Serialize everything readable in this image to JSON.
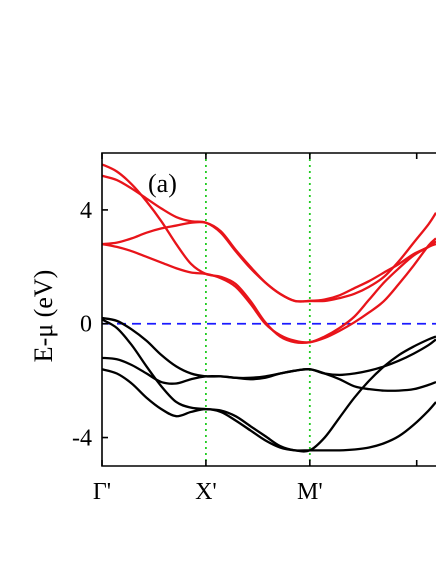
{
  "chart_data": {
    "type": "line",
    "panel_label": "(a)",
    "ylabel": "E-μ (eV)",
    "xlabel": "",
    "ylim": [
      -5.0,
      6.0
    ],
    "xlim": [
      0,
      2.25
    ],
    "grid": false,
    "legend": "none",
    "yticks": [
      {
        "value": 4,
        "label": "4"
      },
      {
        "value": 0,
        "label": "0"
      },
      {
        "value": -4,
        "label": "-4"
      }
    ],
    "xticks": [
      {
        "value": 0,
        "label": "Γ'"
      },
      {
        "value": 0.7,
        "label": "X'"
      },
      {
        "value": 1.4,
        "label": "M'"
      }
    ],
    "reference_lines": [
      {
        "orientation": "horizontal",
        "value": 0,
        "style": "dashed",
        "color": "#1a1aff"
      },
      {
        "orientation": "vertical",
        "value": 0.7,
        "style": "dotted",
        "color": "#22cc22"
      },
      {
        "orientation": "vertical",
        "value": 1.4,
        "style": "dotted",
        "color": "#22cc22"
      }
    ],
    "colors": {
      "conduction": "#e8141a",
      "valence": "#000000"
    },
    "series": [
      {
        "group": "conduction",
        "points": [
          [
            0,
            5.6
          ],
          [
            0.1,
            5.35
          ],
          [
            0.2,
            4.9
          ],
          [
            0.3,
            4.3
          ],
          [
            0.4,
            3.6
          ],
          [
            0.5,
            2.8
          ],
          [
            0.6,
            2.1
          ],
          [
            0.7,
            1.75
          ],
          [
            0.8,
            1.65
          ],
          [
            0.9,
            1.4
          ],
          [
            1.0,
            0.8
          ],
          [
            1.1,
            0.05
          ],
          [
            1.2,
            -0.45
          ],
          [
            1.3,
            -0.65
          ],
          [
            1.4,
            -0.65
          ],
          [
            1.5,
            -0.5
          ],
          [
            1.6,
            -0.25
          ],
          [
            1.7,
            0.05
          ],
          [
            1.8,
            0.4
          ],
          [
            1.9,
            0.8
          ],
          [
            2.0,
            1.4
          ],
          [
            2.1,
            2.05
          ],
          [
            2.2,
            2.75
          ],
          [
            2.25,
            3.0
          ]
        ]
      },
      {
        "group": "conduction",
        "points": [
          [
            0,
            5.2
          ],
          [
            0.1,
            5.05
          ],
          [
            0.2,
            4.75
          ],
          [
            0.3,
            4.4
          ],
          [
            0.4,
            4.05
          ],
          [
            0.5,
            3.75
          ],
          [
            0.6,
            3.6
          ],
          [
            0.7,
            3.55
          ],
          [
            0.8,
            3.2
          ],
          [
            0.9,
            2.55
          ],
          [
            1.0,
            1.95
          ],
          [
            1.1,
            1.45
          ],
          [
            1.2,
            1.05
          ],
          [
            1.3,
            0.8
          ],
          [
            1.4,
            0.8
          ],
          [
            1.5,
            0.85
          ],
          [
            1.6,
            1.0
          ],
          [
            1.7,
            1.25
          ],
          [
            1.8,
            1.5
          ],
          [
            1.9,
            1.8
          ],
          [
            2.0,
            2.1
          ],
          [
            2.1,
            2.45
          ],
          [
            2.2,
            2.7
          ],
          [
            2.25,
            2.9
          ]
        ]
      },
      {
        "group": "conduction",
        "points": [
          [
            0,
            2.8
          ],
          [
            0.1,
            2.85
          ],
          [
            0.2,
            3.0
          ],
          [
            0.3,
            3.2
          ],
          [
            0.4,
            3.35
          ],
          [
            0.5,
            3.45
          ],
          [
            0.6,
            3.55
          ],
          [
            0.7,
            3.55
          ],
          [
            0.8,
            3.25
          ],
          [
            0.9,
            2.6
          ],
          [
            1.0,
            2.0
          ],
          [
            1.1,
            1.45
          ],
          [
            1.2,
            1.05
          ],
          [
            1.3,
            0.8
          ],
          [
            1.4,
            0.8
          ],
          [
            1.5,
            0.8
          ],
          [
            1.6,
            0.9
          ],
          [
            1.7,
            1.05
          ],
          [
            1.8,
            1.3
          ],
          [
            1.9,
            1.65
          ],
          [
            2.0,
            2.2
          ],
          [
            2.1,
            2.85
          ],
          [
            2.2,
            3.5
          ],
          [
            2.25,
            3.9
          ]
        ]
      },
      {
        "group": "conduction",
        "points": [
          [
            0,
            2.8
          ],
          [
            0.1,
            2.7
          ],
          [
            0.2,
            2.55
          ],
          [
            0.3,
            2.35
          ],
          [
            0.4,
            2.15
          ],
          [
            0.5,
            1.95
          ],
          [
            0.6,
            1.8
          ],
          [
            0.7,
            1.75
          ],
          [
            0.8,
            1.6
          ],
          [
            0.9,
            1.3
          ],
          [
            1.0,
            0.7
          ],
          [
            1.1,
            0.0
          ],
          [
            1.2,
            -0.4
          ],
          [
            1.3,
            -0.6
          ],
          [
            1.4,
            -0.65
          ],
          [
            1.5,
            -0.45
          ],
          [
            1.6,
            -0.15
          ],
          [
            1.7,
            0.25
          ],
          [
            1.8,
            0.85
          ],
          [
            1.9,
            1.45
          ],
          [
            2.0,
            1.95
          ],
          [
            2.1,
            2.4
          ],
          [
            2.2,
            2.7
          ],
          [
            2.25,
            2.8
          ]
        ]
      },
      {
        "group": "valence",
        "points": [
          [
            0,
            0.2
          ],
          [
            0.1,
            0.1
          ],
          [
            0.2,
            -0.2
          ],
          [
            0.3,
            -0.6
          ],
          [
            0.4,
            -1.1
          ],
          [
            0.5,
            -1.5
          ],
          [
            0.6,
            -1.75
          ],
          [
            0.7,
            -1.85
          ],
          [
            0.8,
            -1.85
          ],
          [
            0.9,
            -1.9
          ],
          [
            1.0,
            -1.9
          ],
          [
            1.1,
            -1.85
          ],
          [
            1.2,
            -1.75
          ],
          [
            1.3,
            -1.65
          ],
          [
            1.4,
            -1.6
          ],
          [
            1.5,
            -1.75
          ],
          [
            1.6,
            -1.8
          ],
          [
            1.7,
            -1.75
          ],
          [
            1.8,
            -1.65
          ],
          [
            1.9,
            -1.5
          ],
          [
            2.0,
            -1.3
          ],
          [
            2.1,
            -1.05
          ],
          [
            2.2,
            -0.75
          ],
          [
            2.25,
            -0.55
          ]
        ]
      },
      {
        "group": "valence",
        "points": [
          [
            0,
            0.15
          ],
          [
            0.1,
            -0.15
          ],
          [
            0.2,
            -0.75
          ],
          [
            0.3,
            -1.5
          ],
          [
            0.4,
            -2.2
          ],
          [
            0.5,
            -2.75
          ],
          [
            0.6,
            -2.95
          ],
          [
            0.7,
            -3.0
          ],
          [
            0.8,
            -3.05
          ],
          [
            0.9,
            -3.25
          ],
          [
            1.0,
            -3.6
          ],
          [
            1.1,
            -3.95
          ],
          [
            1.2,
            -4.3
          ],
          [
            1.3,
            -4.45
          ],
          [
            1.4,
            -4.45
          ],
          [
            1.5,
            -4.0
          ],
          [
            1.6,
            -3.3
          ],
          [
            1.7,
            -2.6
          ],
          [
            1.8,
            -2.0
          ],
          [
            1.9,
            -1.5
          ],
          [
            2.0,
            -1.1
          ],
          [
            2.1,
            -0.8
          ],
          [
            2.2,
            -0.55
          ],
          [
            2.25,
            -0.45
          ]
        ]
      },
      {
        "group": "valence",
        "points": [
          [
            0,
            -1.2
          ],
          [
            0.1,
            -1.25
          ],
          [
            0.2,
            -1.45
          ],
          [
            0.3,
            -1.75
          ],
          [
            0.4,
            -2.05
          ],
          [
            0.5,
            -2.1
          ],
          [
            0.6,
            -1.95
          ],
          [
            0.7,
            -1.85
          ],
          [
            0.8,
            -1.85
          ],
          [
            0.9,
            -1.9
          ],
          [
            1.0,
            -1.95
          ],
          [
            1.1,
            -1.9
          ],
          [
            1.2,
            -1.75
          ],
          [
            1.3,
            -1.65
          ],
          [
            1.4,
            -1.6
          ],
          [
            1.5,
            -1.75
          ],
          [
            1.6,
            -1.95
          ],
          [
            1.7,
            -2.2
          ],
          [
            1.8,
            -2.3
          ],
          [
            1.9,
            -2.35
          ],
          [
            2.0,
            -2.35
          ],
          [
            2.1,
            -2.3
          ],
          [
            2.2,
            -2.15
          ],
          [
            2.25,
            -2.05
          ]
        ]
      },
      {
        "group": "valence",
        "points": [
          [
            0,
            -1.6
          ],
          [
            0.1,
            -1.75
          ],
          [
            0.2,
            -2.1
          ],
          [
            0.3,
            -2.6
          ],
          [
            0.4,
            -3.0
          ],
          [
            0.5,
            -3.25
          ],
          [
            0.6,
            -3.1
          ],
          [
            0.7,
            -3.0
          ],
          [
            0.8,
            -3.1
          ],
          [
            0.9,
            -3.4
          ],
          [
            1.0,
            -3.75
          ],
          [
            1.1,
            -4.1
          ],
          [
            1.2,
            -4.35
          ],
          [
            1.3,
            -4.45
          ],
          [
            1.4,
            -4.45
          ],
          [
            1.5,
            -4.45
          ],
          [
            1.6,
            -4.45
          ],
          [
            1.7,
            -4.42
          ],
          [
            1.8,
            -4.35
          ],
          [
            1.9,
            -4.2
          ],
          [
            2.0,
            -3.95
          ],
          [
            2.1,
            -3.55
          ],
          [
            2.2,
            -3.05
          ],
          [
            2.25,
            -2.75
          ]
        ]
      }
    ]
  }
}
